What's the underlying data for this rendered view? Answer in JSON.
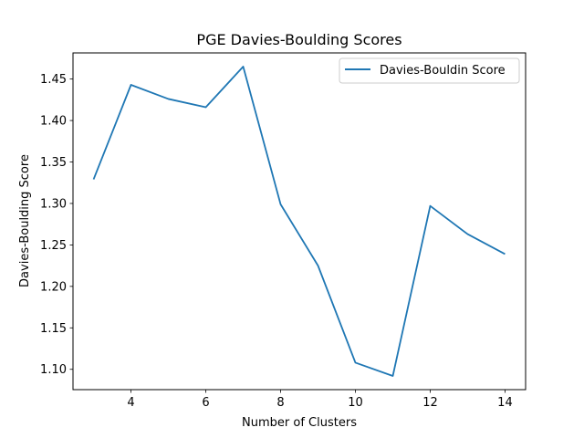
{
  "chart_data": {
    "type": "line",
    "title": "PGE Davies-Boulding Scores",
    "xlabel": "Number of Clusters",
    "ylabel": "Davies-Boulding Score",
    "xlim": [
      2.45,
      14.55
    ],
    "ylim": [
      1.0755,
      1.4815
    ],
    "xticks": [
      4,
      6,
      8,
      10,
      12,
      14
    ],
    "yticks": [
      1.1,
      1.15,
      1.2,
      1.25,
      1.3,
      1.35,
      1.4,
      1.45
    ],
    "ytick_format": 2,
    "grid": false,
    "legend_position": "top-right",
    "series": [
      {
        "name": "Davies-Bouldin Score",
        "color": "#1f77b4",
        "x": [
          3,
          4,
          5,
          6,
          7,
          8,
          9,
          10,
          11,
          12,
          13,
          14
        ],
        "y": [
          1.329,
          1.443,
          1.426,
          1.416,
          1.465,
          1.299,
          1.225,
          1.108,
          1.092,
          1.297,
          1.263,
          1.239
        ]
      }
    ]
  }
}
